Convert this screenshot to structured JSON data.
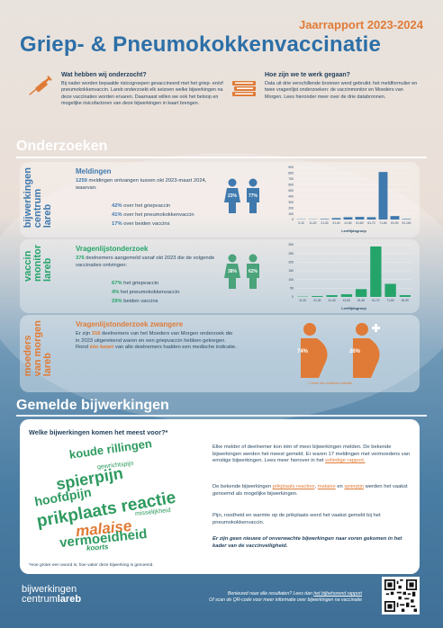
{
  "header": {
    "year": "Jaarrapport 2023-2024",
    "title": "Griep- & Pneumokokkenvaccinatie"
  },
  "intro": {
    "left": {
      "question": "Wat hebben wij onderzocht?",
      "text": "Bij nader worden bepaalde risicogroepen gevaccineerd met het griep- en/of pneumokokkenvaccin. Lareb onderzoekt elk seizoen welke bijwerkingen na deze vaccinaties worden ervaren. Daarnaast willen we ook het beloop en mogelijke risicofactoren van deze bijwerkingen in kaart brengen.",
      "icon": "syringe-icon"
    },
    "right": {
      "question": "Hoe zijn we te werk gegaan?",
      "text": "Data uit drie verschillende bronnen werd gebruikt: het meldformulier en twee vragenlijst onderzoeken: de vaccinmonitor en Moeders van Morgen. Lees hieronder meer over de drie databronnen.",
      "icon": "books-icon"
    }
  },
  "sections": {
    "onderzoeken": "Onderzoeken",
    "bijwerkingen": "Gemelde bijwerkingen"
  },
  "panels": {
    "meldingen": {
      "label_lines": [
        "bijwerkingen",
        "centrum",
        "lareb"
      ],
      "title": "Meldingen",
      "body_num": "1259",
      "body": "meldingen ontvangen tussen okt 2023-maart 2024, waarvan:",
      "stats": [
        {
          "pct": "42%",
          "text": "over het griepvaccin"
        },
        {
          "pct": "41%",
          "text": "over het pneumokokkenvaccin"
        },
        {
          "pct": "17%",
          "text": "over beiden vaccins"
        }
      ],
      "gender": {
        "female": "23%",
        "male": "77%"
      }
    },
    "vaccinmonitor": {
      "label_lines": [
        "vaccin",
        "monitor",
        "lareb"
      ],
      "title": "Vragenlijstonderzoek",
      "body_num": "376",
      "body": "deelnemers aangemeld vanaf okt 2023 die de volgende vaccinaties ontvingen:",
      "stats": [
        {
          "pct": "67%",
          "text": "het griepvaccin"
        },
        {
          "pct": "4%",
          "text": "het pneumokokkenvaccin"
        },
        {
          "pct": "29%",
          "text": "beiden vaccins"
        }
      ],
      "gender": {
        "female": "38%",
        "male": "62%"
      }
    },
    "moeders": {
      "label_lines": [
        "moeders",
        "van morgen",
        "lareb"
      ],
      "title": "Vragenlijstonderzoek zwangere",
      "body_pre": "Er zijn",
      "body_num": "318",
      "body": "deelnemers van het Moeders van Morgen onderzoek die in 2023 uitgerekend waren en een griepvaccin hebben gekregen.",
      "body2_pre": "Rond",
      "body2_em": "één kwart",
      "body2": "van alle deelnemers hadden een medische indicatie.",
      "pregnant": {
        "left": "74%",
        "right": "26%"
      },
      "note": "* Lorem een medische indicatie"
    }
  },
  "chart_data": [
    {
      "type": "bar",
      "xlabel": "Leeftijdsgroep",
      "categories": [
        "0-10",
        "11-20",
        "21-30",
        "31-40",
        "41-50",
        "51-60",
        "61-70",
        "71-80",
        "81-90",
        "91-100"
      ],
      "values": [
        5,
        5,
        10,
        25,
        40,
        45,
        40,
        820,
        60,
        10
      ],
      "ylim": [
        0,
        900
      ],
      "yticks": [
        "0",
        "100",
        "200",
        "300",
        "400",
        "500",
        "600",
        "700",
        "800",
        "900"
      ],
      "color": "#3f79ad"
    },
    {
      "type": "bar",
      "xlabel": "Leeftijdsgroep",
      "categories": [
        "11-20",
        "21-30",
        "31-40",
        "41-50",
        "51-60",
        "61-70",
        "71-80",
        "81-90"
      ],
      "values": [
        2,
        5,
        10,
        15,
        45,
        290,
        75,
        10
      ],
      "ylim": [
        0,
        300
      ],
      "yticks": [
        "0",
        "50",
        "100",
        "150",
        "200",
        "250",
        "300"
      ],
      "color": "#25a46a"
    }
  ],
  "wordcloud": {
    "question": "Welke bijwerkingen komen het meest voor?*",
    "words": [
      {
        "text": "koude rillingen",
        "color": "#2e9a5f"
      },
      {
        "text": "gewrichtspijn",
        "color": "#2e9a5f"
      },
      {
        "text": "spierpijn",
        "color": "#2e9a5f"
      },
      {
        "text": "hoofdpijn",
        "color": "#2e9a5f"
      },
      {
        "text": "prikplaats reactie",
        "color": "#2e9a5f"
      },
      {
        "text": "misselijkheid",
        "color": "#2e9a5f"
      },
      {
        "text": "malaise",
        "color": "#e07b37"
      },
      {
        "text": "vermoeidheid",
        "color": "#2e9a5f"
      },
      {
        "text": "koorts",
        "color": "#2e9a5f"
      }
    ],
    "note": "*Hoe groter een woord is, hoe vaker deze bijwerking is genoemd."
  },
  "card_text": {
    "p1": "Elke melder of deelnemer kon één of meer bijwerkingen melden. De bekende bijwerkingen werden het meest gemeld. Er waren 17 meldingen met vermoedens van ernstige bijwerkingen. Lees meer hierover in het",
    "p1_link": "volledige rapport.",
    "p2_pre": "De bekende bijwerkingen",
    "p2_l1": "prikplaats reacties",
    "p2_l2": "malaise",
    "p2_en": "en",
    "p2_l3": "spierpijn",
    "p2": "werden het vaakst genoemd als mogelijke bijwerkingen.",
    "p3": "Pijn, roodheid en warmte op de prikplaats werd het vaakst gemeld bij het pneumokokkenvaccin.",
    "final": "Er zijn geen nieuwe of onverwachte bijwerkingen naar voren gekomen in het kader van de vaccinveiligheid."
  },
  "footer": {
    "logo_line1": "bijwerkingen",
    "logo_line2a": "centrum",
    "logo_line2b": "lareb",
    "text1": "Benieuwd naar alle resultaten? Lees dan",
    "text1_link": "het bijbehorend rapport",
    "text2": "Of scan de QR-code voor meer informatie over bijwerkingen na vaccinatie"
  },
  "colors": {
    "accent_orange": "#e07b37",
    "title_blue": "#2d6fa7",
    "bar_blue": "#3f79ad",
    "bar_green": "#25a46a",
    "male_green": "#4aa37a"
  }
}
